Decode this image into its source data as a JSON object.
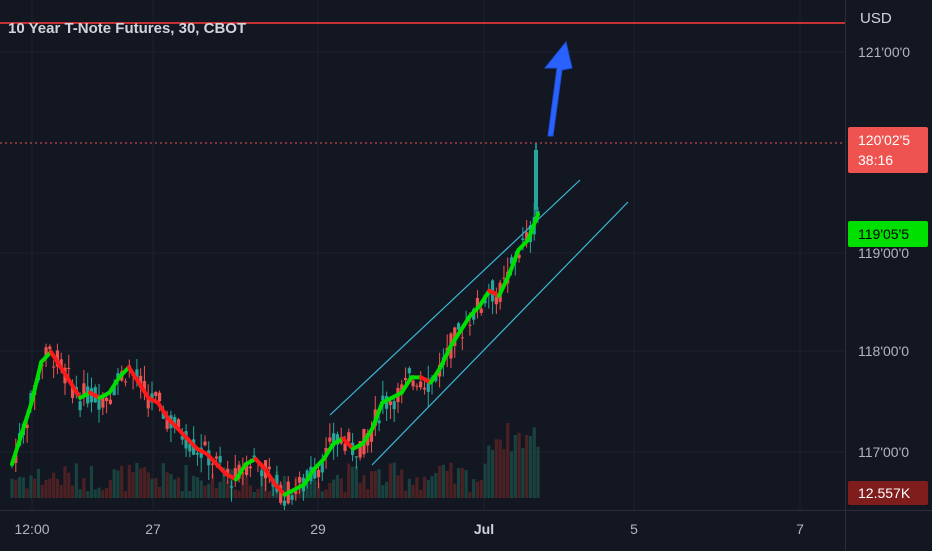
{
  "title": "10 Year T-Note Futures, 30, CBOT",
  "currency": "USD",
  "price_axis": {
    "ticks": [
      "121'00'0",
      "119'00'0",
      "118'00'0",
      "117'00'0"
    ],
    "current_price": "120'02'5",
    "countdown": "38:16",
    "ma_value": "119'05'5",
    "volume": "12.557K"
  },
  "time_axis": {
    "ticks": [
      "12:00",
      "27",
      "29",
      "Jul",
      "5",
      "7"
    ]
  },
  "colors": {
    "background": "#131722",
    "up": "#26a69a",
    "down": "#ef5350",
    "ma_up": "#00e000",
    "ma_down": "#ff1a1a",
    "channel": "#3bb9d8",
    "arrow": "#2962ff",
    "resistance": "#ff3b3b"
  },
  "chart_data": {
    "type": "line",
    "series": [
      {
        "values": [
          116.9,
          117.2,
          117.5,
          117.9,
          118.0,
          117.85,
          117.7,
          117.55,
          117.6,
          117.55,
          117.6,
          117.75,
          117.85,
          117.7,
          117.55,
          117.5,
          117.35,
          117.25,
          117.15,
          117.05,
          117.0,
          116.9,
          116.8,
          116.75,
          116.9,
          116.95,
          116.85,
          116.7,
          116.6,
          116.65,
          116.7,
          116.85,
          116.95,
          117.1,
          117.15,
          117.05,
          117.1,
          117.25,
          117.5,
          117.55,
          117.6,
          117.75,
          117.75,
          117.7,
          117.85,
          118.05,
          118.2,
          118.35,
          118.45,
          118.6,
          118.55,
          118.75,
          119.0,
          119.1,
          119.35
        ]
      }
    ],
    "ylim": [
      116.45,
      121.45
    ],
    "annotations": [
      "rising-channel",
      "up-arrow",
      "resistance-line"
    ]
  }
}
